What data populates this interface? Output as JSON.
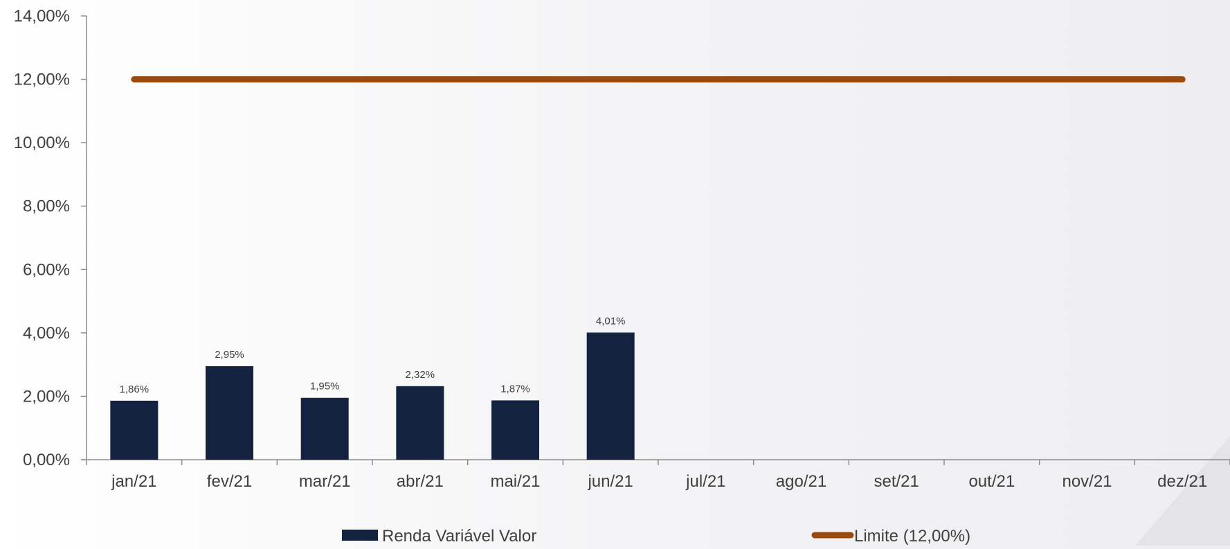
{
  "chart_data": {
    "type": "bar",
    "categories": [
      "jan/21",
      "fev/21",
      "mar/21",
      "abr/21",
      "mai/21",
      "jun/21",
      "jul/21",
      "ago/21",
      "set/21",
      "out/21",
      "nov/21",
      "dez/21"
    ],
    "series": [
      {
        "name": "Renda Variável Valor",
        "type": "bar",
        "color": "#13233f",
        "values": [
          1.86,
          2.95,
          1.95,
          2.32,
          1.87,
          4.01,
          null,
          null,
          null,
          null,
          null,
          null
        ],
        "labels": [
          "1,86%",
          "2,95%",
          "1,95%",
          "2,32%",
          "1,87%",
          "4,01%"
        ]
      },
      {
        "name": "Limite (12,00%)",
        "type": "line",
        "color": "#9a4a0e",
        "values": [
          12,
          12,
          12,
          12,
          12,
          12,
          12,
          12,
          12,
          12,
          12,
          12
        ]
      }
    ],
    "yticks": [
      "0,00%",
      "2,00%",
      "4,00%",
      "6,00%",
      "8,00%",
      "10,00%",
      "12,00%",
      "14,00%"
    ],
    "ylim": [
      0,
      14
    ],
    "grid": false,
    "legend_position": "bottom",
    "title": "",
    "xlabel": "",
    "ylabel": ""
  }
}
